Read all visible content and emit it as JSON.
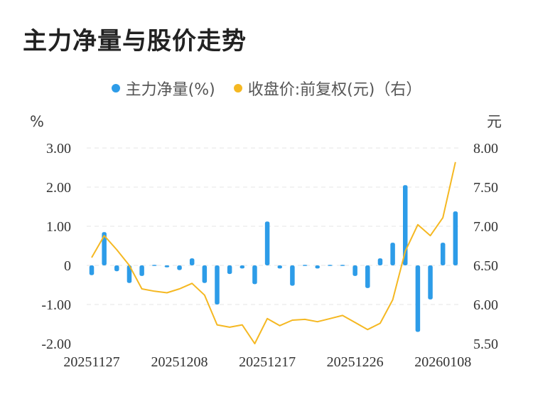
{
  "title": "主力净量与股价走势",
  "legend": {
    "bar_label": "主力净量(%)",
    "line_label": "收盘价:前复权(元)（右）"
  },
  "colors": {
    "bar": "#2d9ce8",
    "line": "#f5b822",
    "grid": "#e6e6e6",
    "text": "#333333"
  },
  "chart_data": {
    "type": "bar+line",
    "left_axis": {
      "unit": "%",
      "ticks": [
        "3.00",
        "2.00",
        "1.00",
        "0",
        "-1.00",
        "-2.00"
      ],
      "ylim": [
        -2,
        3
      ]
    },
    "right_axis": {
      "unit": "元",
      "ticks": [
        "8.00",
        "7.50",
        "7.00",
        "6.50",
        "6.00",
        "5.50"
      ],
      "ylim": [
        5.5,
        8
      ]
    },
    "x_tick_labels": [
      "20251127",
      "20251208",
      "20251217",
      "20251226",
      "20260108"
    ],
    "x_tick_index": [
      0,
      7,
      14,
      21,
      28
    ],
    "series": [
      {
        "name": "主力净量(%)",
        "type": "bar",
        "axis": "left",
        "values": [
          -0.25,
          0.85,
          -0.15,
          -0.45,
          -0.27,
          0.02,
          -0.05,
          -0.12,
          0.18,
          -0.45,
          -1.0,
          -0.22,
          -0.08,
          -0.48,
          1.12,
          -0.08,
          -0.52,
          0.02,
          -0.08,
          0.0,
          0.02,
          -0.27,
          -0.58,
          0.18,
          0.58,
          2.05,
          -1.7,
          -0.87,
          0.58,
          1.38
        ]
      },
      {
        "name": "收盘价:前复权(元)（右）",
        "type": "line",
        "axis": "right",
        "values": [
          6.6,
          6.88,
          6.7,
          6.5,
          6.2,
          6.17,
          6.15,
          6.2,
          6.27,
          6.12,
          5.74,
          5.71,
          5.74,
          5.5,
          5.82,
          5.73,
          5.8,
          5.81,
          5.78,
          5.82,
          5.86,
          5.77,
          5.68,
          5.76,
          6.06,
          6.68,
          7.02,
          6.88,
          7.11,
          7.82
        ]
      }
    ]
  }
}
